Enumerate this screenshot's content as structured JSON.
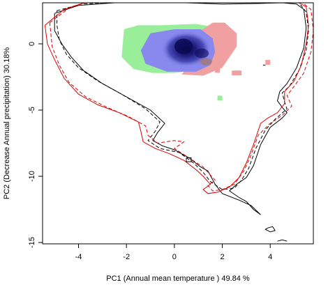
{
  "chart_data": {
    "type": "scatter",
    "xlabel": "PC1 (Annual mean temperature ) 49.84 %",
    "ylabel": "PC2 (Decrease Annual precipitation) 30.18%",
    "xlim": [
      -5.5,
      5.8
    ],
    "ylim": [
      -15.1,
      3.1
    ],
    "x_ticks": [
      -4,
      -2,
      0,
      2,
      4
    ],
    "y_ticks": [
      0,
      -5,
      -10,
      -15
    ],
    "colors": {
      "green_region": "#99ee99",
      "blue_region": "#8888ee",
      "red_region": "#f0a0a0",
      "density_core": "#0a0a55",
      "contour_black": "#000000",
      "contour_red": "#dd0000"
    },
    "regions": {
      "green": [
        [
          -2.1,
          1.1
        ],
        [
          -1.5,
          1.4
        ],
        [
          -0.6,
          1.4
        ],
        [
          0.9,
          1.5
        ],
        [
          1.6,
          1.3
        ],
        [
          1.5,
          -0.6
        ],
        [
          0.8,
          -2.0
        ],
        [
          0.0,
          -2.2
        ],
        [
          -0.9,
          -2.2
        ],
        [
          -1.7,
          -1.9
        ],
        [
          -2.2,
          -1.0
        ]
      ],
      "red": [
        [
          1.1,
          1.0
        ],
        [
          1.6,
          1.6
        ],
        [
          2.1,
          1.6
        ],
        [
          2.6,
          0.8
        ],
        [
          2.6,
          -0.2
        ],
        [
          2.0,
          -1.8
        ],
        [
          1.2,
          -2.4
        ],
        [
          0.3,
          -2.3
        ],
        [
          0.9,
          -1.0
        ]
      ],
      "blue": [
        [
          -1.0,
          0.8
        ],
        [
          0.0,
          1.1
        ],
        [
          1.1,
          1.1
        ],
        [
          1.6,
          0.4
        ],
        [
          1.7,
          -0.6
        ],
        [
          1.5,
          -1.6
        ],
        [
          0.9,
          -2.1
        ],
        [
          -0.3,
          -2.1
        ],
        [
          -1.2,
          -1.5
        ],
        [
          -1.4,
          -0.5
        ]
      ],
      "small_squares": [
        [
          1.9,
          -4.1
        ],
        [
          2.5,
          -2.2
        ],
        [
          2.7,
          -2.2
        ],
        [
          1.8,
          -2.0
        ],
        [
          3.9,
          -1.4
        ]
      ]
    },
    "density_core": {
      "x": 0.5,
      "y": -0.4
    },
    "contours": {
      "black_solid": [
        [
          -5.0,
          2.3
        ],
        [
          -4.0,
          2.9
        ],
        [
          -2.5,
          3.1
        ],
        [
          -1.0,
          3.1
        ],
        [
          0.5,
          3.1
        ],
        [
          2.0,
          3.0
        ],
        [
          3.5,
          3.05
        ],
        [
          4.5,
          3.1
        ],
        [
          5.1,
          3.0
        ],
        [
          5.4,
          2.6
        ],
        [
          5.5,
          1.2
        ],
        [
          5.4,
          -0.3
        ],
        [
          5.1,
          -1.8
        ],
        [
          4.7,
          -3.0
        ],
        [
          4.4,
          -3.6
        ],
        [
          4.3,
          -4.3
        ],
        [
          4.5,
          -4.8
        ],
        [
          4.7,
          -5.2
        ],
        [
          4.5,
          -5.6
        ],
        [
          4.0,
          -6.3
        ],
        [
          3.6,
          -7.6
        ],
        [
          3.3,
          -9.2
        ],
        [
          3.0,
          -10.1
        ],
        [
          2.6,
          -10.6
        ],
        [
          2.3,
          -11.1
        ],
        [
          2.7,
          -11.6
        ],
        [
          3.0,
          -11.9
        ],
        [
          3.3,
          -12.5
        ],
        [
          3.6,
          -12.9
        ],
        [
          3.2,
          -12.2
        ],
        [
          2.7,
          -11.8
        ],
        [
          2.0,
          -11.3
        ],
        [
          1.7,
          -10.6
        ],
        [
          1.4,
          -9.6
        ],
        [
          1.1,
          -9.3
        ],
        [
          0.6,
          -8.6
        ],
        [
          0.0,
          -8.0
        ],
        [
          -0.5,
          -7.7
        ],
        [
          -0.9,
          -7.3
        ],
        [
          -0.7,
          -6.7
        ],
        [
          -0.4,
          -6.0
        ],
        [
          -1.0,
          -5.0
        ],
        [
          -2.0,
          -4.0
        ],
        [
          -3.0,
          -3.0
        ],
        [
          -3.8,
          -2.0
        ],
        [
          -4.3,
          -1.0
        ],
        [
          -4.7,
          0.0
        ],
        [
          -5.0,
          1.0
        ],
        [
          -5.0,
          2.3
        ]
      ],
      "black_dashed": [
        [
          -4.9,
          2.5
        ],
        [
          -3.9,
          3.0
        ],
        [
          -2.4,
          3.15
        ],
        [
          -0.9,
          3.2
        ],
        [
          0.6,
          3.2
        ],
        [
          2.1,
          3.1
        ],
        [
          3.6,
          3.15
        ],
        [
          4.6,
          3.2
        ],
        [
          5.2,
          3.1
        ],
        [
          5.5,
          2.4
        ],
        [
          5.6,
          1.0
        ],
        [
          5.5,
          -0.5
        ],
        [
          5.2,
          -2.0
        ],
        [
          4.8,
          -3.2
        ],
        [
          4.5,
          -3.7
        ],
        [
          4.6,
          -4.4
        ],
        [
          4.7,
          -4.9
        ],
        [
          4.2,
          -5.7
        ],
        [
          3.8,
          -6.5
        ],
        [
          3.4,
          -7.9
        ],
        [
          3.1,
          -9.4
        ],
        [
          2.8,
          -10.3
        ],
        [
          2.5,
          -10.9
        ],
        [
          2.0,
          -11.0
        ],
        [
          1.5,
          -10.4
        ],
        [
          1.2,
          -9.7
        ],
        [
          0.8,
          -9.0
        ],
        [
          0.2,
          -8.2
        ],
        [
          -0.6,
          -7.9
        ],
        [
          -1.1,
          -7.3
        ],
        [
          -0.8,
          -6.6
        ],
        [
          -0.6,
          -5.9
        ],
        [
          -1.2,
          -4.9
        ],
        [
          -2.2,
          -3.8
        ],
        [
          -3.2,
          -2.8
        ],
        [
          -4.0,
          -1.8
        ],
        [
          -4.5,
          -0.8
        ],
        [
          -4.8,
          0.3
        ],
        [
          -4.9,
          1.4
        ],
        [
          -4.9,
          2.5
        ]
      ],
      "red_solid": [
        [
          -5.4,
          1.4
        ],
        [
          -4.6,
          2.6
        ],
        [
          -3.6,
          3.2
        ],
        [
          -2.0,
          3.3
        ],
        [
          0.0,
          3.3
        ],
        [
          2.0,
          3.3
        ],
        [
          3.8,
          3.3
        ],
        [
          5.0,
          3.3
        ],
        [
          5.5,
          2.8
        ],
        [
          5.6,
          1.4
        ],
        [
          5.5,
          0.0
        ],
        [
          5.3,
          -1.6
        ],
        [
          5.0,
          -2.8
        ],
        [
          4.6,
          -3.6
        ],
        [
          4.6,
          -4.5
        ],
        [
          4.3,
          -5.2
        ],
        [
          3.9,
          -5.6
        ],
        [
          3.6,
          -6.0
        ],
        [
          3.3,
          -7.6
        ],
        [
          3.0,
          -9.0
        ],
        [
          2.7,
          -10.1
        ],
        [
          2.3,
          -10.8
        ],
        [
          1.8,
          -11.2
        ],
        [
          1.4,
          -11.3
        ],
        [
          1.2,
          -11.0
        ],
        [
          1.5,
          -10.6
        ],
        [
          1.2,
          -10.0
        ],
        [
          0.9,
          -9.5
        ],
        [
          0.4,
          -8.8
        ],
        [
          -0.2,
          -8.3
        ],
        [
          -0.8,
          -7.9
        ],
        [
          -1.3,
          -7.4
        ],
        [
          -1.4,
          -6.6
        ],
        [
          -1.5,
          -5.9
        ],
        [
          -2.3,
          -5.2
        ],
        [
          -3.2,
          -4.6
        ],
        [
          -4.0,
          -3.8
        ],
        [
          -4.6,
          -2.6
        ],
        [
          -5.0,
          -1.2
        ],
        [
          -5.3,
          0.0
        ],
        [
          -5.4,
          1.4
        ]
      ],
      "red_dashed": [
        [
          -5.2,
          1.6
        ],
        [
          -4.4,
          2.7
        ],
        [
          -3.4,
          3.3
        ],
        [
          -1.8,
          3.4
        ],
        [
          0.2,
          3.4
        ],
        [
          2.2,
          3.4
        ],
        [
          4.0,
          3.4
        ],
        [
          5.2,
          3.3
        ],
        [
          5.7,
          2.6
        ],
        [
          5.8,
          1.0
        ],
        [
          5.7,
          -0.6
        ],
        [
          5.4,
          -2.2
        ],
        [
          5.0,
          -3.2
        ],
        [
          4.7,
          -3.9
        ],
        [
          4.9,
          -4.7
        ],
        [
          4.5,
          -5.4
        ],
        [
          4.0,
          -6.0
        ],
        [
          3.5,
          -6.9
        ],
        [
          3.2,
          -8.4
        ],
        [
          2.9,
          -9.6
        ],
        [
          2.5,
          -10.6
        ],
        [
          2.0,
          -11.0
        ],
        [
          1.6,
          -11.1
        ],
        [
          1.4,
          -10.7
        ],
        [
          1.7,
          -10.3
        ],
        [
          1.2,
          -9.3
        ],
        [
          0.6,
          -8.6
        ],
        [
          0.0,
          -7.9
        ],
        [
          0.4,
          -7.4
        ],
        [
          0.0,
          -7.3
        ],
        [
          -0.7,
          -7.5
        ],
        [
          -1.1,
          -6.9
        ],
        [
          -1.2,
          -6.2
        ],
        [
          -1.9,
          -5.5
        ],
        [
          -2.8,
          -4.8
        ],
        [
          -3.7,
          -4.0
        ],
        [
          -4.4,
          -2.9
        ],
        [
          -4.8,
          -1.6
        ],
        [
          -5.1,
          -0.2
        ],
        [
          -5.2,
          1.6
        ]
      ],
      "small_islands": [
        [
          [
            0.5,
            -8.6
          ],
          [
            0.7,
            -8.6
          ],
          [
            0.7,
            -8.9
          ],
          [
            0.5,
            -8.9
          ],
          [
            0.5,
            -8.6
          ]
        ],
        [
          [
            3.9,
            -13.9
          ],
          [
            4.1,
            -13.8
          ],
          [
            4.2,
            -14.1
          ],
          [
            4.0,
            -14.2
          ],
          [
            3.8,
            -14.0
          ],
          [
            3.9,
            -13.9
          ]
        ],
        [
          [
            4.3,
            -14.9
          ],
          [
            4.5,
            -14.8
          ],
          [
            4.7,
            -14.9
          ]
        ],
        [
          [
            3.7,
            -1.6
          ],
          [
            3.8,
            -1.6
          ]
        ]
      ]
    }
  }
}
